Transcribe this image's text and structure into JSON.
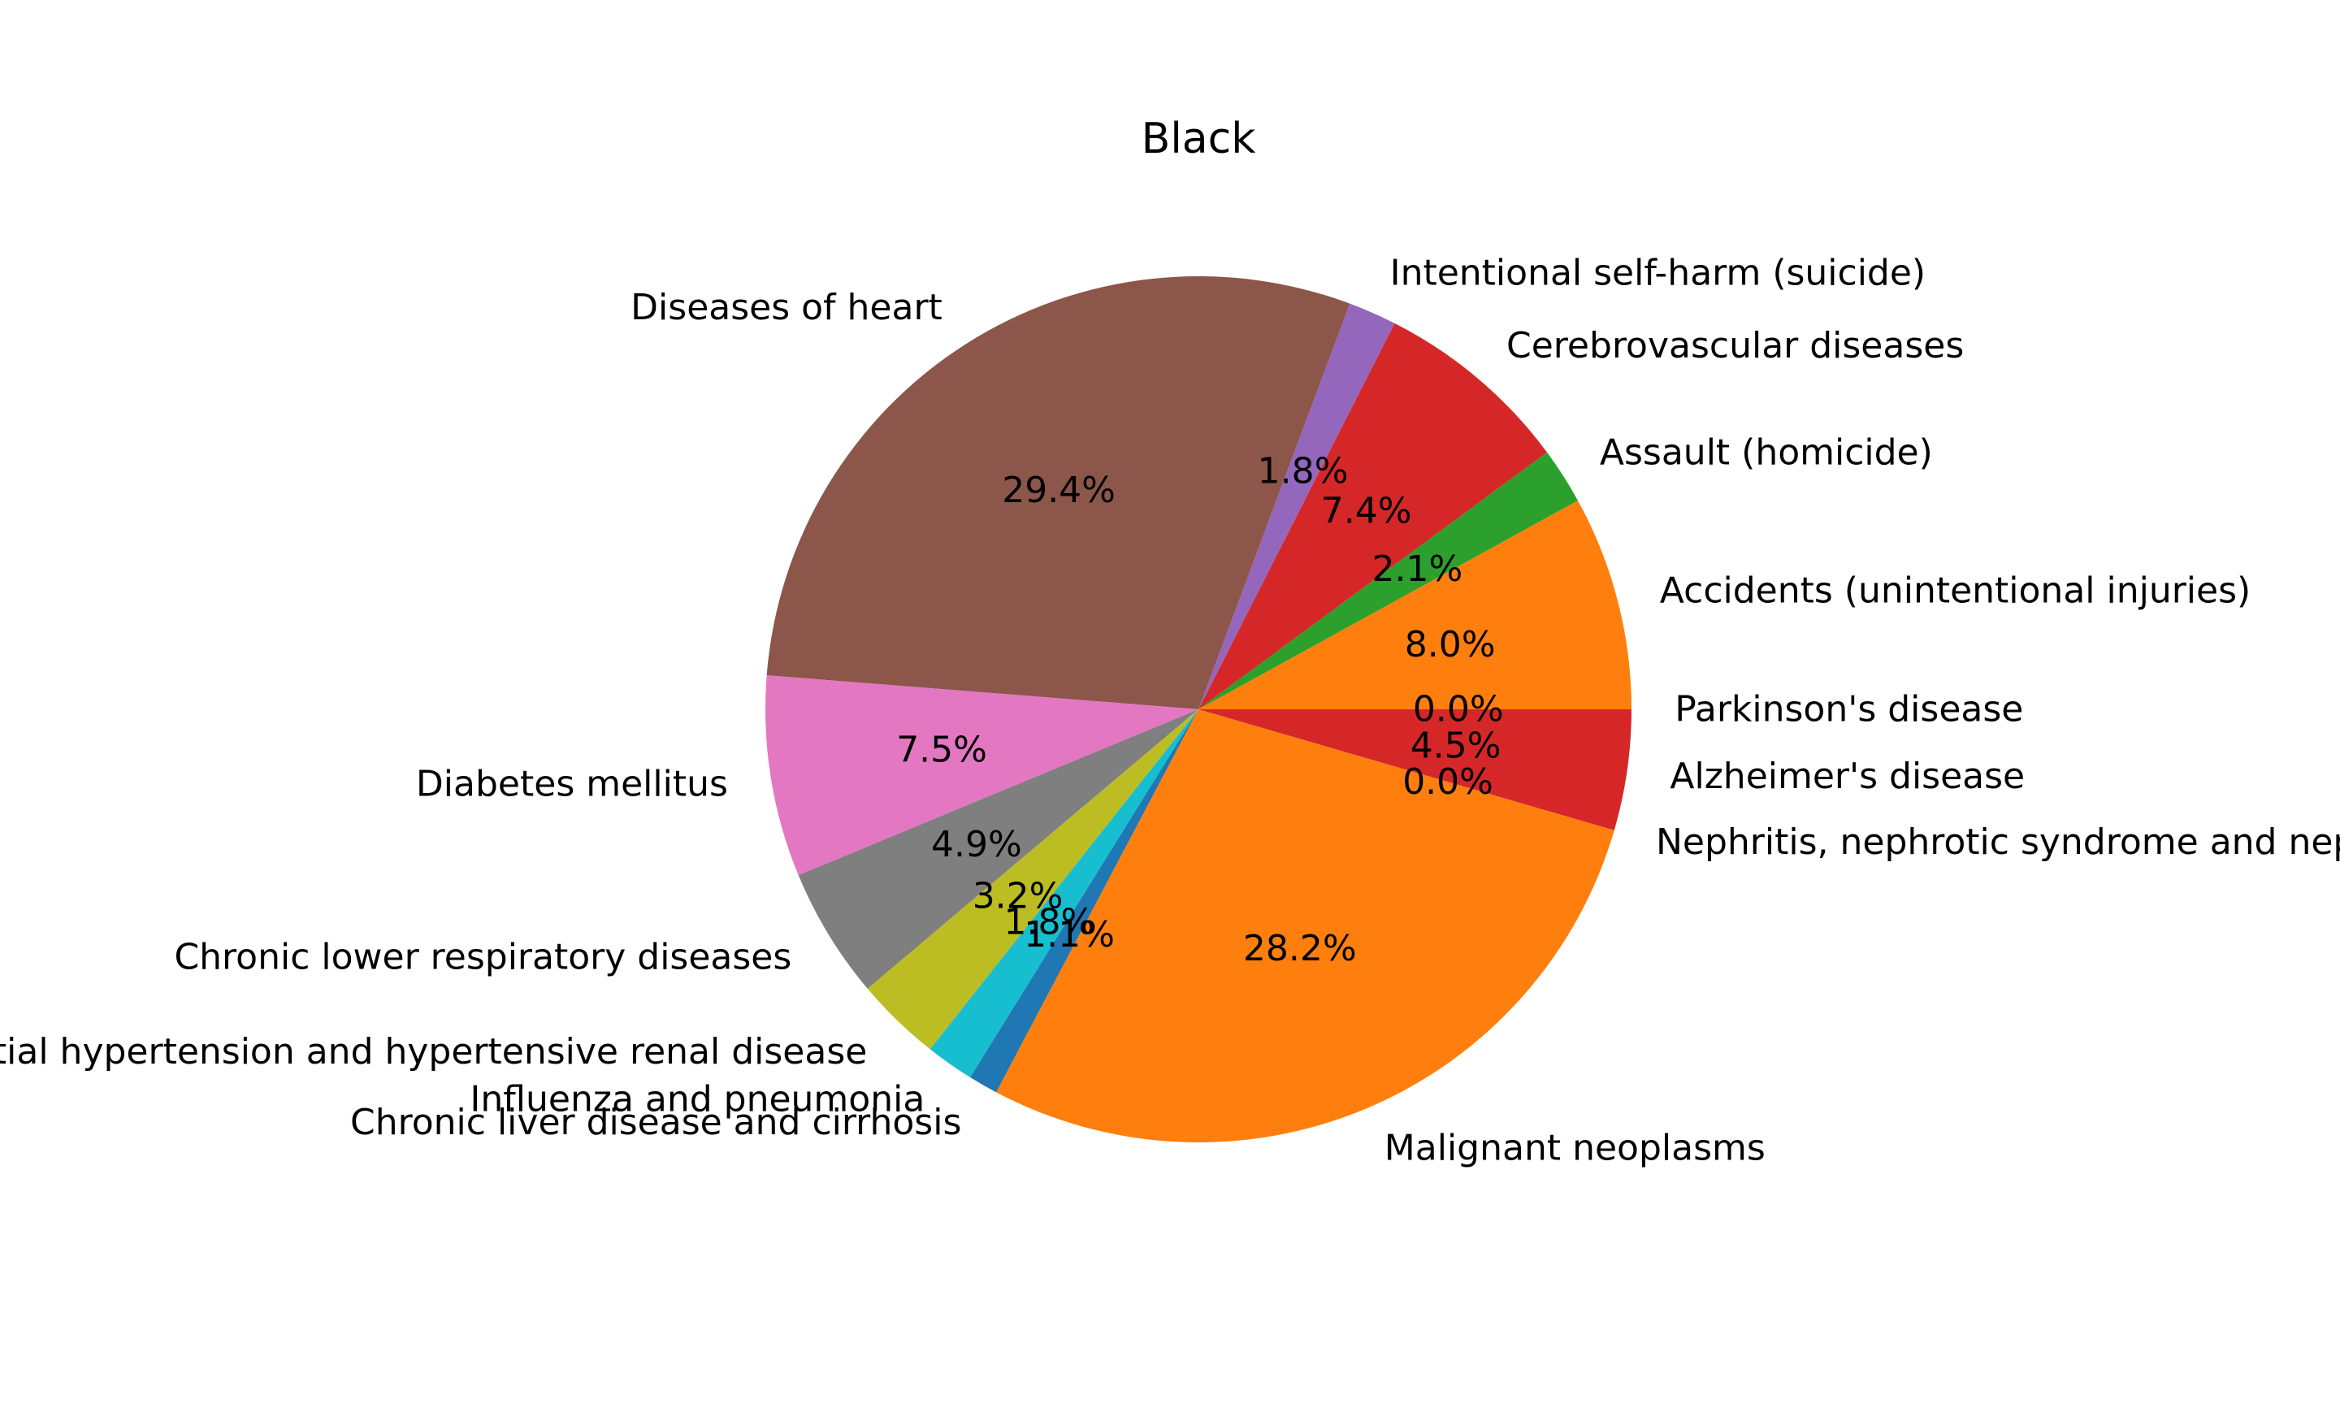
{
  "chart_data": {
    "type": "pie",
    "title": "Black",
    "start_angle_deg": 0,
    "direction": "counterclockwise",
    "slices": [
      {
        "label": "Accidents (unintentional injuries)",
        "value": 8.0,
        "pct_label": "8.0%",
        "color": "#ff7f0e"
      },
      {
        "label": "Assault (homicide)",
        "value": 2.1,
        "pct_label": "2.1%",
        "color": "#2ca02c"
      },
      {
        "label": "Cerebrovascular diseases",
        "value": 7.4,
        "pct_label": "7.4%",
        "color": "#d62728"
      },
      {
        "label": "Intentional self-harm (suicide)",
        "value": 1.8,
        "pct_label": "1.8%",
        "color": "#9467bd"
      },
      {
        "label": "Diseases of heart",
        "value": 29.4,
        "pct_label": "29.4%",
        "color": "#8c564b"
      },
      {
        "label": "Diabetes mellitus",
        "value": 7.5,
        "pct_label": "7.5%",
        "color": "#e377c2"
      },
      {
        "label": "Chronic lower respiratory diseases",
        "value": 4.9,
        "pct_label": "4.9%",
        "color": "#7f7f7f"
      },
      {
        "label": "Essential hypertension and hypertensive renal disease",
        "value": 3.2,
        "pct_label": "3.2%",
        "color": "#bcbd22"
      },
      {
        "label": "Influenza and pneumonia",
        "value": 1.8,
        "pct_label": "1.8%",
        "color": "#17becf"
      },
      {
        "label": "Chronic liver disease and cirrhosis",
        "value": 1.1,
        "pct_label": "1.1%",
        "color": "#1f77b4"
      },
      {
        "label": "Malignant neoplasms",
        "value": 28.2,
        "pct_label": "28.2%",
        "color": "#ff7f0e"
      },
      {
        "label": "Nephritis, nephrotic syndrome and nephrosis",
        "value": 0.0,
        "pct_label": "0.0%",
        "color": "#2ca02c"
      },
      {
        "label": "Alzheimer's disease",
        "value": 4.5,
        "pct_label": "4.5%",
        "color": "#d62728"
      },
      {
        "label": "Parkinson's disease",
        "value": 0.0,
        "pct_label": "0.0%",
        "color": "#9467bd"
      }
    ]
  }
}
